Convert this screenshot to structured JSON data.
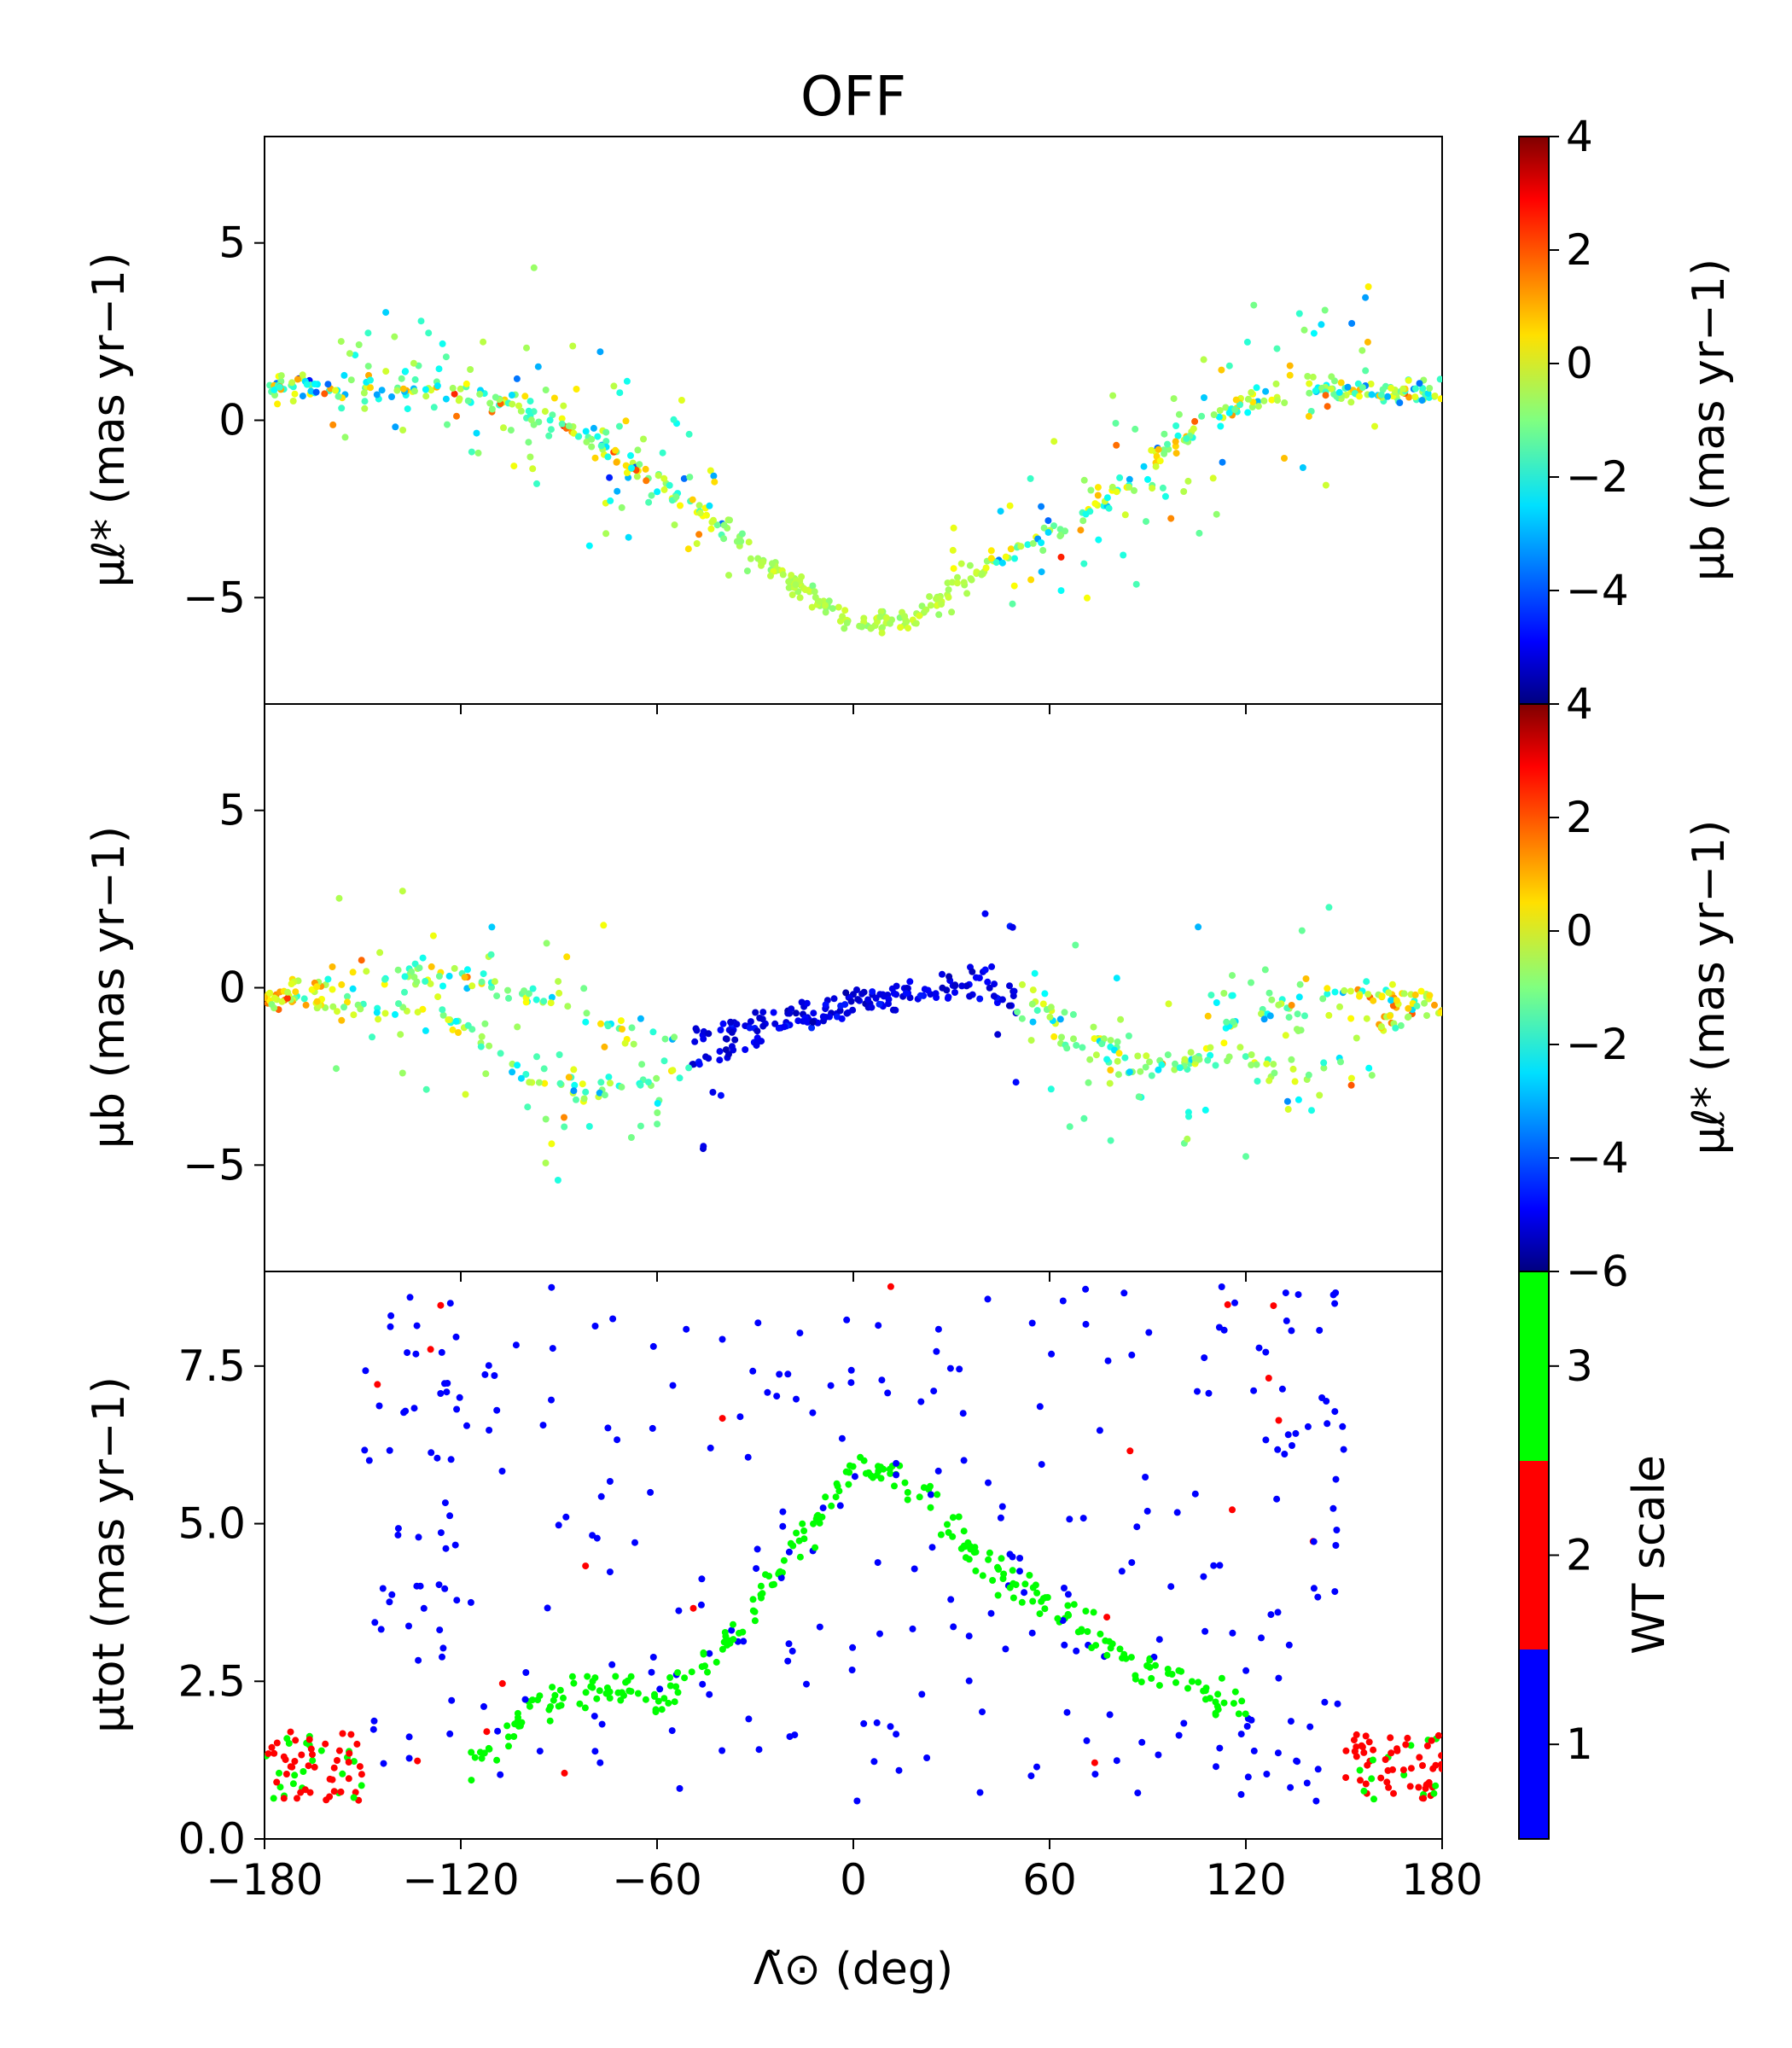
{
  "title": "OFF",
  "xlabel": "Λ̃⊙ (deg)",
  "chart_data": [
    {
      "type": "scatter",
      "panel": "top",
      "ylabel": "μℓ* (mas yr−1)",
      "xlim": [
        -180,
        180
      ],
      "ylim": [
        -8,
        8
      ],
      "xticks": [
        -180,
        -120,
        -60,
        0,
        60,
        120,
        180
      ],
      "yticks": [
        -5,
        0,
        5
      ],
      "color_encoding": "μb (mas yr−1)",
      "trend": {
        "x": [
          -180,
          -150,
          -120,
          -100,
          -80,
          -60,
          -40,
          -20,
          0,
          20,
          40,
          60,
          80,
          100,
          120,
          140,
          160,
          180
        ],
        "y": [
          1.0,
          0.8,
          0.8,
          0.3,
          -0.5,
          -1.8,
          -3.0,
          -4.5,
          -5.8,
          -5.5,
          -4.2,
          -3.2,
          -2.0,
          -0.6,
          0.6,
          1.0,
          0.8,
          0.8
        ]
      }
    },
    {
      "type": "scatter",
      "panel": "middle",
      "ylabel": "μb (mas yr−1)",
      "xlim": [
        -180,
        180
      ],
      "ylim": [
        -8,
        8
      ],
      "xticks": [
        -180,
        -120,
        -60,
        0,
        60,
        120,
        180
      ],
      "yticks": [
        -5,
        0,
        5
      ],
      "color_encoding": "μℓ* (mas yr−1)",
      "trend_upper": {
        "x": [
          -180,
          -150,
          -120,
          -90,
          -60,
          -40,
          -20,
          0,
          20,
          40,
          60,
          80,
          100,
          120,
          150,
          180
        ],
        "y": [
          -0.3,
          0.3,
          0.4,
          -0.5,
          -1.5,
          -1.3,
          -0.7,
          -0.3,
          0.0,
          0.3,
          -0.5,
          -1.8,
          -2.2,
          -0.8,
          -0.2,
          -0.3
        ]
      },
      "trend_lower": {
        "x": [
          -180,
          -150,
          -120,
          -100,
          -80,
          -60,
          -40,
          -20,
          0,
          20,
          40,
          60,
          80,
          100,
          120,
          140,
          160,
          180
        ],
        "y": [
          -0.3,
          -0.5,
          -1.0,
          -2.5,
          -3.0,
          -2.5,
          -2.0,
          -1.0,
          -0.6,
          -0.2,
          -0.2,
          -1.2,
          -2.3,
          -2.2,
          -2.0,
          -2.5,
          -1.0,
          -0.6
        ]
      }
    },
    {
      "type": "scatter",
      "panel": "bottom",
      "ylabel": "μtot (mas yr−1)",
      "xlim": [
        -180,
        180
      ],
      "ylim": [
        0,
        9
      ],
      "xticks": [
        -180,
        -120,
        -60,
        0,
        60,
        120,
        180
      ],
      "yticks": [
        0.0,
        2.5,
        5.0,
        7.5
      ],
      "color_encoding": "WT scale",
      "categories": [
        1,
        2,
        3
      ],
      "category_colors": [
        "#0000ff",
        "#ff0000",
        "#00ff00"
      ],
      "trend": {
        "x": [
          -120,
          -100,
          -80,
          -60,
          -40,
          -20,
          0,
          10,
          20,
          40,
          60,
          80,
          100,
          120
        ],
        "y": [
          1.0,
          2.0,
          2.5,
          2.2,
          3.0,
          4.5,
          5.8,
          5.9,
          5.5,
          4.3,
          3.8,
          3.0,
          2.5,
          2.0
        ]
      }
    }
  ],
  "colorbars": [
    {
      "label": "μb (mas yr−1)",
      "ticks": [
        "4",
        "2",
        "0",
        "−2",
        "−4"
      ],
      "range": [
        -6,
        4
      ]
    },
    {
      "label": "μℓ* (mas yr−1)",
      "ticks": [
        "4",
        "2",
        "0",
        "−2",
        "−4",
        "−6"
      ],
      "range": [
        -6,
        4
      ]
    },
    {
      "label": "WT scale",
      "ticks": [
        "3",
        "2",
        "1"
      ],
      "colors": [
        "#00ff00",
        "#ff0000",
        "#0000ff"
      ]
    }
  ]
}
